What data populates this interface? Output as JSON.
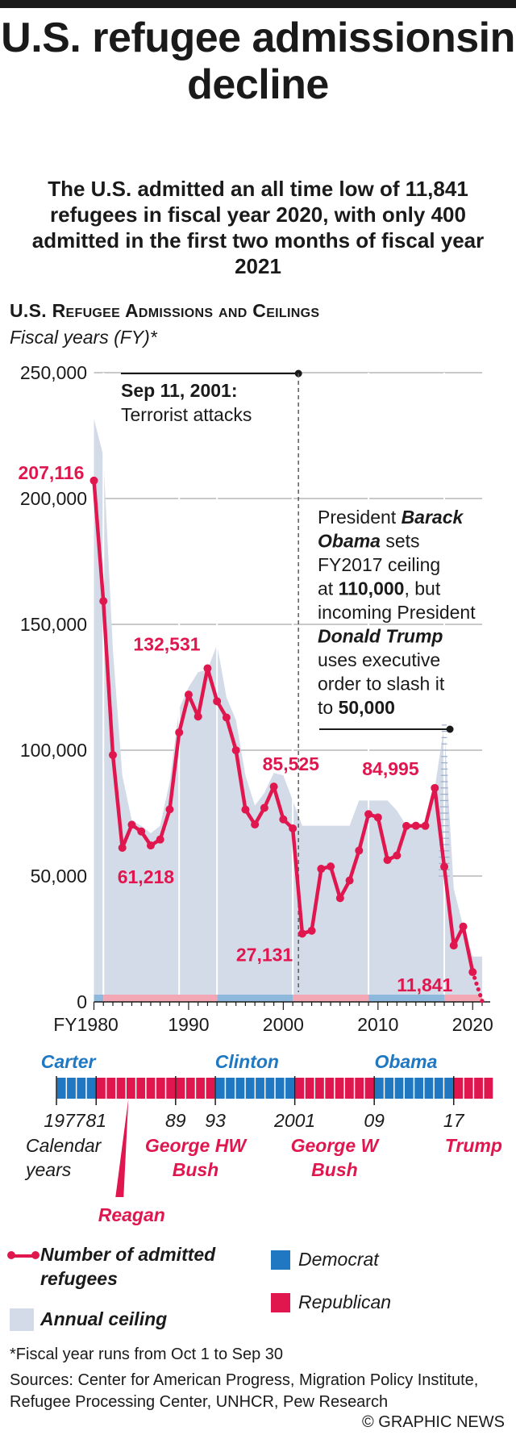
{
  "title": "U.S. refugee admissionsin decline",
  "subtitle": "The U.S. admitted an all time low of 11,841 refugees in fiscal year 2020, with only 400 admitted in the first two months of fiscal year 2021",
  "section_heading": "U.S. Refugee Admissions and Ceilings",
  "section_subheading": "Fiscal years (FY)*",
  "colors": {
    "refugee_line": "#e0174f",
    "ceiling_area": "#d3dbe8",
    "democrat": "#1f78c1",
    "republican": "#e0174f"
  },
  "chart_data": {
    "type": "line",
    "title": "U.S. Refugee Admissions and Ceilings",
    "xlabel": "Fiscal years (FY)*",
    "ylabel": "",
    "ylim": [
      0,
      250000
    ],
    "y_ticks": [
      "250,000",
      "200,000",
      "150,000",
      "100,000",
      "50,000",
      "0"
    ],
    "y_tick_values": [
      250000,
      200000,
      150000,
      100000,
      50000,
      0
    ],
    "x_ticks": [
      "FY1980",
      "1990",
      "2000",
      "2010",
      "2020"
    ],
    "x_tick_values": [
      1980,
      1990,
      2000,
      2010,
      2020
    ],
    "grid": true,
    "series": [
      {
        "name": "Number of admitted refugees",
        "x": [
          1980,
          1981,
          1982,
          1983,
          1984,
          1985,
          1986,
          1987,
          1988,
          1989,
          1990,
          1991,
          1992,
          1993,
          1994,
          1995,
          1996,
          1997,
          1998,
          1999,
          2000,
          2001,
          2002,
          2003,
          2004,
          2005,
          2006,
          2007,
          2008,
          2009,
          2010,
          2011,
          2012,
          2013,
          2014,
          2015,
          2016,
          2017,
          2018,
          2019,
          2020
        ],
        "values": [
          207116,
          159252,
          98096,
          61218,
          70393,
          67704,
          62146,
          64528,
          76483,
          107070,
          122066,
          113389,
          132531,
          119448,
          112981,
          99974,
          76403,
          70488,
          77080,
          85525,
          72515,
          68920,
          27131,
          28286,
          52868,
          53813,
          41223,
          48218,
          60108,
          74602,
          73293,
          56384,
          58179,
          69909,
          69975,
          69933,
          84995,
          53716,
          22405,
          29916,
          11841
        ],
        "labels": [
          {
            "x": 1980,
            "text": "207,116"
          },
          {
            "x": 1983,
            "text": "61,218"
          },
          {
            "x": 1992,
            "text": "132,531"
          },
          {
            "x": 1999,
            "text": "85,525"
          },
          {
            "x": 2002,
            "text": "27,131"
          },
          {
            "x": 2016,
            "text": "84,995"
          },
          {
            "x": 2020,
            "text": "11,841"
          }
        ]
      },
      {
        "name": "Annual ceiling",
        "x": [
          1980,
          1981,
          1982,
          1983,
          1984,
          1985,
          1986,
          1987,
          1988,
          1989,
          1990,
          1991,
          1992,
          1993,
          1994,
          1995,
          1996,
          1997,
          1998,
          1999,
          2000,
          2001,
          2002,
          2003,
          2004,
          2005,
          2006,
          2007,
          2008,
          2009,
          2010,
          2011,
          2012,
          2013,
          2014,
          2015,
          2016,
          2017,
          2018,
          2019,
          2020
        ],
        "values": [
          231700,
          217000,
          140000,
          90000,
          72000,
          70000,
          67000,
          70000,
          87500,
          116500,
          125000,
          131000,
          132000,
          142000,
          121000,
          112000,
          90000,
          78000,
          83000,
          91000,
          90000,
          80000,
          70000,
          70000,
          70000,
          70000,
          70000,
          70000,
          80000,
          80000,
          80000,
          80000,
          76000,
          70000,
          70000,
          70000,
          85000,
          110000,
          45000,
          30000,
          18000
        ]
      }
    ],
    "trump_ceiling_cut": {
      "from": 110000,
      "to": 50000,
      "year": 2017
    },
    "fy2021_first_two_months": 400,
    "presidency_bar_under_axis": [
      {
        "from": 1980,
        "to": 1981,
        "party": "Democrat"
      },
      {
        "from": 1981,
        "to": 1993,
        "party": "Republican"
      },
      {
        "from": 1993,
        "to": 2001,
        "party": "Democrat"
      },
      {
        "from": 2001,
        "to": 2009,
        "party": "Republican"
      },
      {
        "from": 2009,
        "to": 2017,
        "party": "Democrat"
      },
      {
        "from": 2017,
        "to": 2021,
        "party": "Republican"
      }
    ],
    "annotations": [
      {
        "year": 2001,
        "heading": "Sep 11, 2001:",
        "text": "Terrorist attacks"
      },
      {
        "year": 2017,
        "lines": [
          [
            {
              "t": "President ",
              "b": false,
              "i": false
            },
            {
              "t": "Barack",
              "b": true,
              "i": true
            }
          ],
          [
            {
              "t": "Obama",
              "b": true,
              "i": true
            },
            {
              "t": " sets",
              "b": false,
              "i": false
            }
          ],
          [
            {
              "t": "FY2017 ceiling",
              "b": false,
              "i": false
            }
          ],
          [
            {
              "t": "at ",
              "b": false,
              "i": false
            },
            {
              "t": "110,000",
              "b": true,
              "i": false
            },
            {
              "t": ", but",
              "b": false,
              "i": false
            }
          ],
          [
            {
              "t": "incoming President",
              "b": false,
              "i": false
            }
          ],
          [
            {
              "t": "Donald Trump",
              "b": true,
              "i": true
            }
          ],
          [
            {
              "t": "uses executive",
              "b": false,
              "i": false
            }
          ],
          [
            {
              "t": "order to slash it",
              "b": false,
              "i": false
            }
          ],
          [
            {
              "t": "to ",
              "b": false,
              "i": false
            },
            {
              "t": "50,000",
              "b": true,
              "i": false
            }
          ]
        ]
      }
    ]
  },
  "timeline": {
    "segments": [
      {
        "from": 1977,
        "to": 1981,
        "party": "Democrat"
      },
      {
        "from": 1981,
        "to": 1993,
        "party": "Republican"
      },
      {
        "from": 1993,
        "to": 2001,
        "party": "Democrat"
      },
      {
        "from": 2001,
        "to": 2009,
        "party": "Republican"
      },
      {
        "from": 2009,
        "to": 2017,
        "party": "Democrat"
      },
      {
        "from": 2017,
        "to": 2021,
        "party": "Republican"
      }
    ],
    "year_labels": [
      {
        "year": 1977,
        "text": "1977"
      },
      {
        "year": 1981,
        "text": "81"
      },
      {
        "year": 1989,
        "text": "89"
      },
      {
        "year": 1993,
        "text": "93"
      },
      {
        "year": 2001,
        "text": "2001"
      },
      {
        "year": 2009,
        "text": "09"
      },
      {
        "year": 2017,
        "text": "17"
      }
    ],
    "calendar_label_1": "Calendar",
    "calendar_label_2": "years",
    "presidents": [
      {
        "name": "Carter",
        "party": "Democrat",
        "pos": "top",
        "year": 1979
      },
      {
        "name": "Clinton",
        "party": "Democrat",
        "pos": "top",
        "year": 1997
      },
      {
        "name": "Obama",
        "party": "Democrat",
        "pos": "top",
        "year": 2013
      },
      {
        "name": "George HW",
        "name2": "Bush",
        "party": "Republican",
        "pos": "bottom",
        "year": 1991
      },
      {
        "name": "George W",
        "name2": "Bush",
        "party": "Republican",
        "pos": "bottom",
        "year": 2005
      },
      {
        "name": "Trump",
        "party": "Republican",
        "pos": "bottom",
        "year": 2019
      },
      {
        "name": "Reagan",
        "party": "Republican",
        "pos": "callout",
        "year": 1985
      }
    ]
  },
  "legend": {
    "refugees": "Number of admitted refugees",
    "ceiling": "Annual ceiling",
    "democrat": "Democrat",
    "republican": "Republican"
  },
  "footnote": "*Fiscal year runs from Oct 1 to Sep 30",
  "sources": "Sources: Center for American Progress, Migration Policy Institute, Refugee Processing Center, UNHCR, Pew Research",
  "credit": "© GRAPHIC NEWS"
}
